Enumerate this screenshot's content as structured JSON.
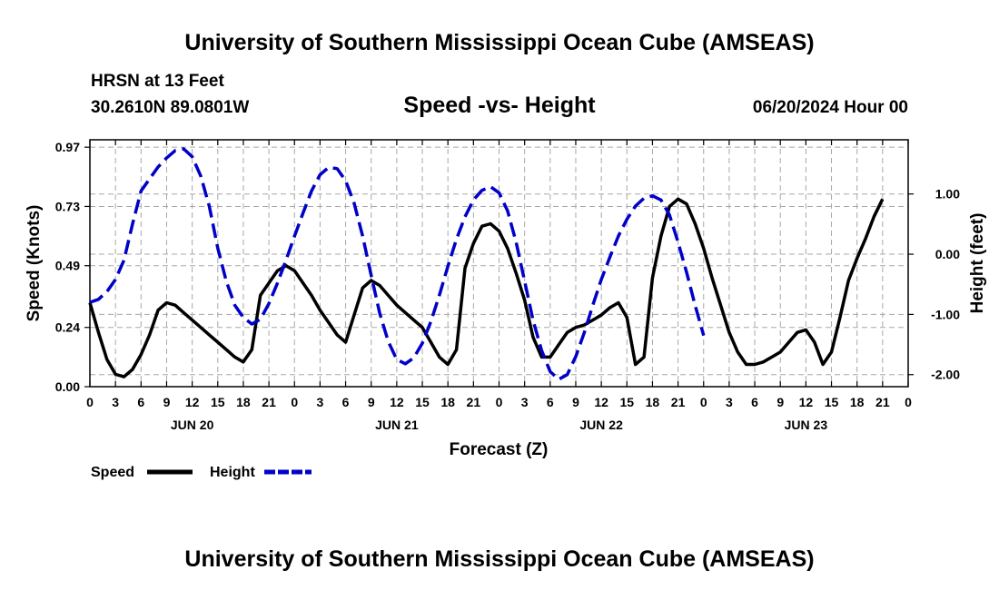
{
  "title": "University of Southern Mississippi Ocean Cube (AMSEAS)",
  "footer_title": "University of Southern Mississippi Ocean Cube (AMSEAS)",
  "station": "HRSN at 13 Feet",
  "location": "30.2610N  89.0801W",
  "chart_subtitle": "Speed -vs- Height",
  "issued": "06/20/2024 Hour 00",
  "chart_data": {
    "type": "line",
    "title": "Speed -vs- Height",
    "xlabel": "Forecast (Z)",
    "ylabel_left": "Speed (Knots)",
    "ylabel_right": "Height (feet)",
    "x_unit": "hours from 06/20/2024 00Z",
    "xlim": [
      0,
      96
    ],
    "ylim_left": [
      0,
      1.0
    ],
    "ylim_right": [
      -2.2,
      1.9
    ],
    "grid": true,
    "x_tick_values": [
      0,
      3,
      6,
      9,
      12,
      15,
      18,
      21,
      24,
      27,
      30,
      33,
      36,
      39,
      42,
      45,
      48,
      51,
      54,
      57,
      60,
      63,
      66,
      69,
      72,
      75,
      78,
      81,
      84,
      87,
      90,
      93,
      96
    ],
    "x_tick_labels": [
      "0",
      "3",
      "6",
      "9",
      "12",
      "15",
      "18",
      "21",
      "0",
      "3",
      "6",
      "9",
      "12",
      "15",
      "18",
      "21",
      "0",
      "3",
      "6",
      "9",
      "12",
      "15",
      "18",
      "21",
      "0",
      "3",
      "6",
      "9",
      "12",
      "15",
      "18",
      "21",
      "0"
    ],
    "day_labels": [
      {
        "x": 12,
        "label": "JUN 20"
      },
      {
        "x": 36,
        "label": "JUN 21"
      },
      {
        "x": 60,
        "label": "JUN 22"
      },
      {
        "x": 84,
        "label": "JUN 23"
      }
    ],
    "y_left_ticks": [
      {
        "value": 0.0,
        "label": "0.00"
      },
      {
        "value": 0.24,
        "label": "0.24"
      },
      {
        "value": 0.49,
        "label": "0.49"
      },
      {
        "value": 0.73,
        "label": "0.73"
      },
      {
        "value": 0.97,
        "label": "0.97"
      }
    ],
    "y_right_ticks": [
      {
        "value": 1.0,
        "label": "1.00"
      },
      {
        "value": 0.0,
        "label": "0.00"
      },
      {
        "value": -1.0,
        "label": "-1.00"
      },
      {
        "value": -2.0,
        "label": "-2.00"
      }
    ],
    "series": [
      {
        "name": "Speed",
        "axis": "left",
        "color": "#000000",
        "style": "solid",
        "points": [
          [
            0,
            0.34
          ],
          [
            1,
            0.22
          ],
          [
            2,
            0.11
          ],
          [
            3,
            0.05
          ],
          [
            4,
            0.04
          ],
          [
            5,
            0.07
          ],
          [
            6,
            0.13
          ],
          [
            7,
            0.21
          ],
          [
            8,
            0.31
          ],
          [
            9,
            0.34
          ],
          [
            10,
            0.33
          ],
          [
            11,
            0.3
          ],
          [
            12,
            0.27
          ],
          [
            13,
            0.24
          ],
          [
            14,
            0.21
          ],
          [
            15,
            0.18
          ],
          [
            16,
            0.15
          ],
          [
            17,
            0.12
          ],
          [
            18,
            0.1
          ],
          [
            19,
            0.15
          ],
          [
            20,
            0.37
          ],
          [
            21,
            0.42
          ],
          [
            22,
            0.47
          ],
          [
            23,
            0.49
          ],
          [
            24,
            0.47
          ],
          [
            25,
            0.42
          ],
          [
            26,
            0.37
          ],
          [
            27,
            0.31
          ],
          [
            28,
            0.26
          ],
          [
            29,
            0.21
          ],
          [
            30,
            0.18
          ],
          [
            31,
            0.29
          ],
          [
            32,
            0.4
          ],
          [
            33,
            0.43
          ],
          [
            34,
            0.41
          ],
          [
            35,
            0.37
          ],
          [
            36,
            0.33
          ],
          [
            37,
            0.3
          ],
          [
            38,
            0.27
          ],
          [
            39,
            0.24
          ],
          [
            40,
            0.18
          ],
          [
            41,
            0.12
          ],
          [
            42,
            0.09
          ],
          [
            43,
            0.15
          ],
          [
            44,
            0.48
          ],
          [
            45,
            0.58
          ],
          [
            46,
            0.65
          ],
          [
            47,
            0.66
          ],
          [
            48,
            0.63
          ],
          [
            49,
            0.56
          ],
          [
            50,
            0.46
          ],
          [
            51,
            0.35
          ],
          [
            52,
            0.2
          ],
          [
            53,
            0.12
          ],
          [
            54,
            0.12
          ],
          [
            55,
            0.17
          ],
          [
            56,
            0.22
          ],
          [
            57,
            0.24
          ],
          [
            58,
            0.25
          ],
          [
            59,
            0.27
          ],
          [
            60,
            0.29
          ],
          [
            61,
            0.32
          ],
          [
            62,
            0.34
          ],
          [
            63,
            0.28
          ],
          [
            64,
            0.09
          ],
          [
            65,
            0.12
          ],
          [
            66,
            0.44
          ],
          [
            67,
            0.61
          ],
          [
            68,
            0.73
          ],
          [
            69,
            0.76
          ],
          [
            70,
            0.74
          ],
          [
            71,
            0.66
          ],
          [
            72,
            0.56
          ],
          [
            73,
            0.44
          ],
          [
            74,
            0.33
          ],
          [
            75,
            0.22
          ],
          [
            76,
            0.14
          ],
          [
            77,
            0.09
          ],
          [
            78,
            0.09
          ],
          [
            79,
            0.1
          ],
          [
            80,
            0.12
          ],
          [
            81,
            0.14
          ],
          [
            82,
            0.18
          ],
          [
            83,
            0.22
          ],
          [
            84,
            0.23
          ],
          [
            85,
            0.18
          ],
          [
            86,
            0.09
          ],
          [
            87,
            0.14
          ],
          [
            88,
            0.28
          ],
          [
            89,
            0.43
          ],
          [
            90,
            0.52
          ],
          [
            91,
            0.6
          ],
          [
            92,
            0.69
          ],
          [
            93,
            0.76
          ]
        ]
      },
      {
        "name": "Height",
        "axis": "right",
        "color": "#0000c8",
        "style": "dashed",
        "points": [
          [
            0,
            -0.8
          ],
          [
            1,
            -0.75
          ],
          [
            2,
            -0.62
          ],
          [
            3,
            -0.42
          ],
          [
            4,
            -0.1
          ],
          [
            5,
            0.5
          ],
          [
            6,
            1.05
          ],
          [
            7,
            1.25
          ],
          [
            8,
            1.45
          ],
          [
            9,
            1.6
          ],
          [
            10,
            1.72
          ],
          [
            11,
            1.75
          ],
          [
            12,
            1.62
          ],
          [
            13,
            1.3
          ],
          [
            14,
            0.8
          ],
          [
            15,
            0.1
          ],
          [
            16,
            -0.45
          ],
          [
            17,
            -0.85
          ],
          [
            18,
            -1.05
          ],
          [
            19,
            -1.16
          ],
          [
            20,
            -1.08
          ],
          [
            21,
            -0.82
          ],
          [
            22,
            -0.48
          ],
          [
            23,
            -0.1
          ],
          [
            24,
            0.3
          ],
          [
            25,
            0.68
          ],
          [
            26,
            1.05
          ],
          [
            27,
            1.32
          ],
          [
            28,
            1.44
          ],
          [
            29,
            1.42
          ],
          [
            30,
            1.22
          ],
          [
            31,
            0.85
          ],
          [
            32,
            0.3
          ],
          [
            33,
            -0.35
          ],
          [
            34,
            -0.98
          ],
          [
            35,
            -1.45
          ],
          [
            36,
            -1.75
          ],
          [
            37,
            -1.82
          ],
          [
            38,
            -1.72
          ],
          [
            39,
            -1.48
          ],
          [
            40,
            -1.12
          ],
          [
            41,
            -0.68
          ],
          [
            42,
            -0.2
          ],
          [
            43,
            0.25
          ],
          [
            44,
            0.62
          ],
          [
            45,
            0.9
          ],
          [
            46,
            1.06
          ],
          [
            47,
            1.12
          ],
          [
            48,
            1.02
          ],
          [
            49,
            0.72
          ],
          [
            50,
            0.2
          ],
          [
            51,
            -0.45
          ],
          [
            52,
            -1.1
          ],
          [
            53,
            -1.6
          ],
          [
            54,
            -1.95
          ],
          [
            55,
            -2.08
          ],
          [
            56,
            -2.0
          ],
          [
            57,
            -1.7
          ],
          [
            58,
            -1.3
          ],
          [
            59,
            -0.85
          ],
          [
            60,
            -0.42
          ],
          [
            61,
            -0.05
          ],
          [
            62,
            0.3
          ],
          [
            63,
            0.58
          ],
          [
            64,
            0.8
          ],
          [
            65,
            0.93
          ],
          [
            66,
            0.97
          ],
          [
            67,
            0.9
          ],
          [
            68,
            0.65
          ],
          [
            69,
            0.2
          ],
          [
            70,
            -0.3
          ],
          [
            71,
            -0.85
          ],
          [
            72,
            -1.35
          ]
        ]
      }
    ]
  }
}
